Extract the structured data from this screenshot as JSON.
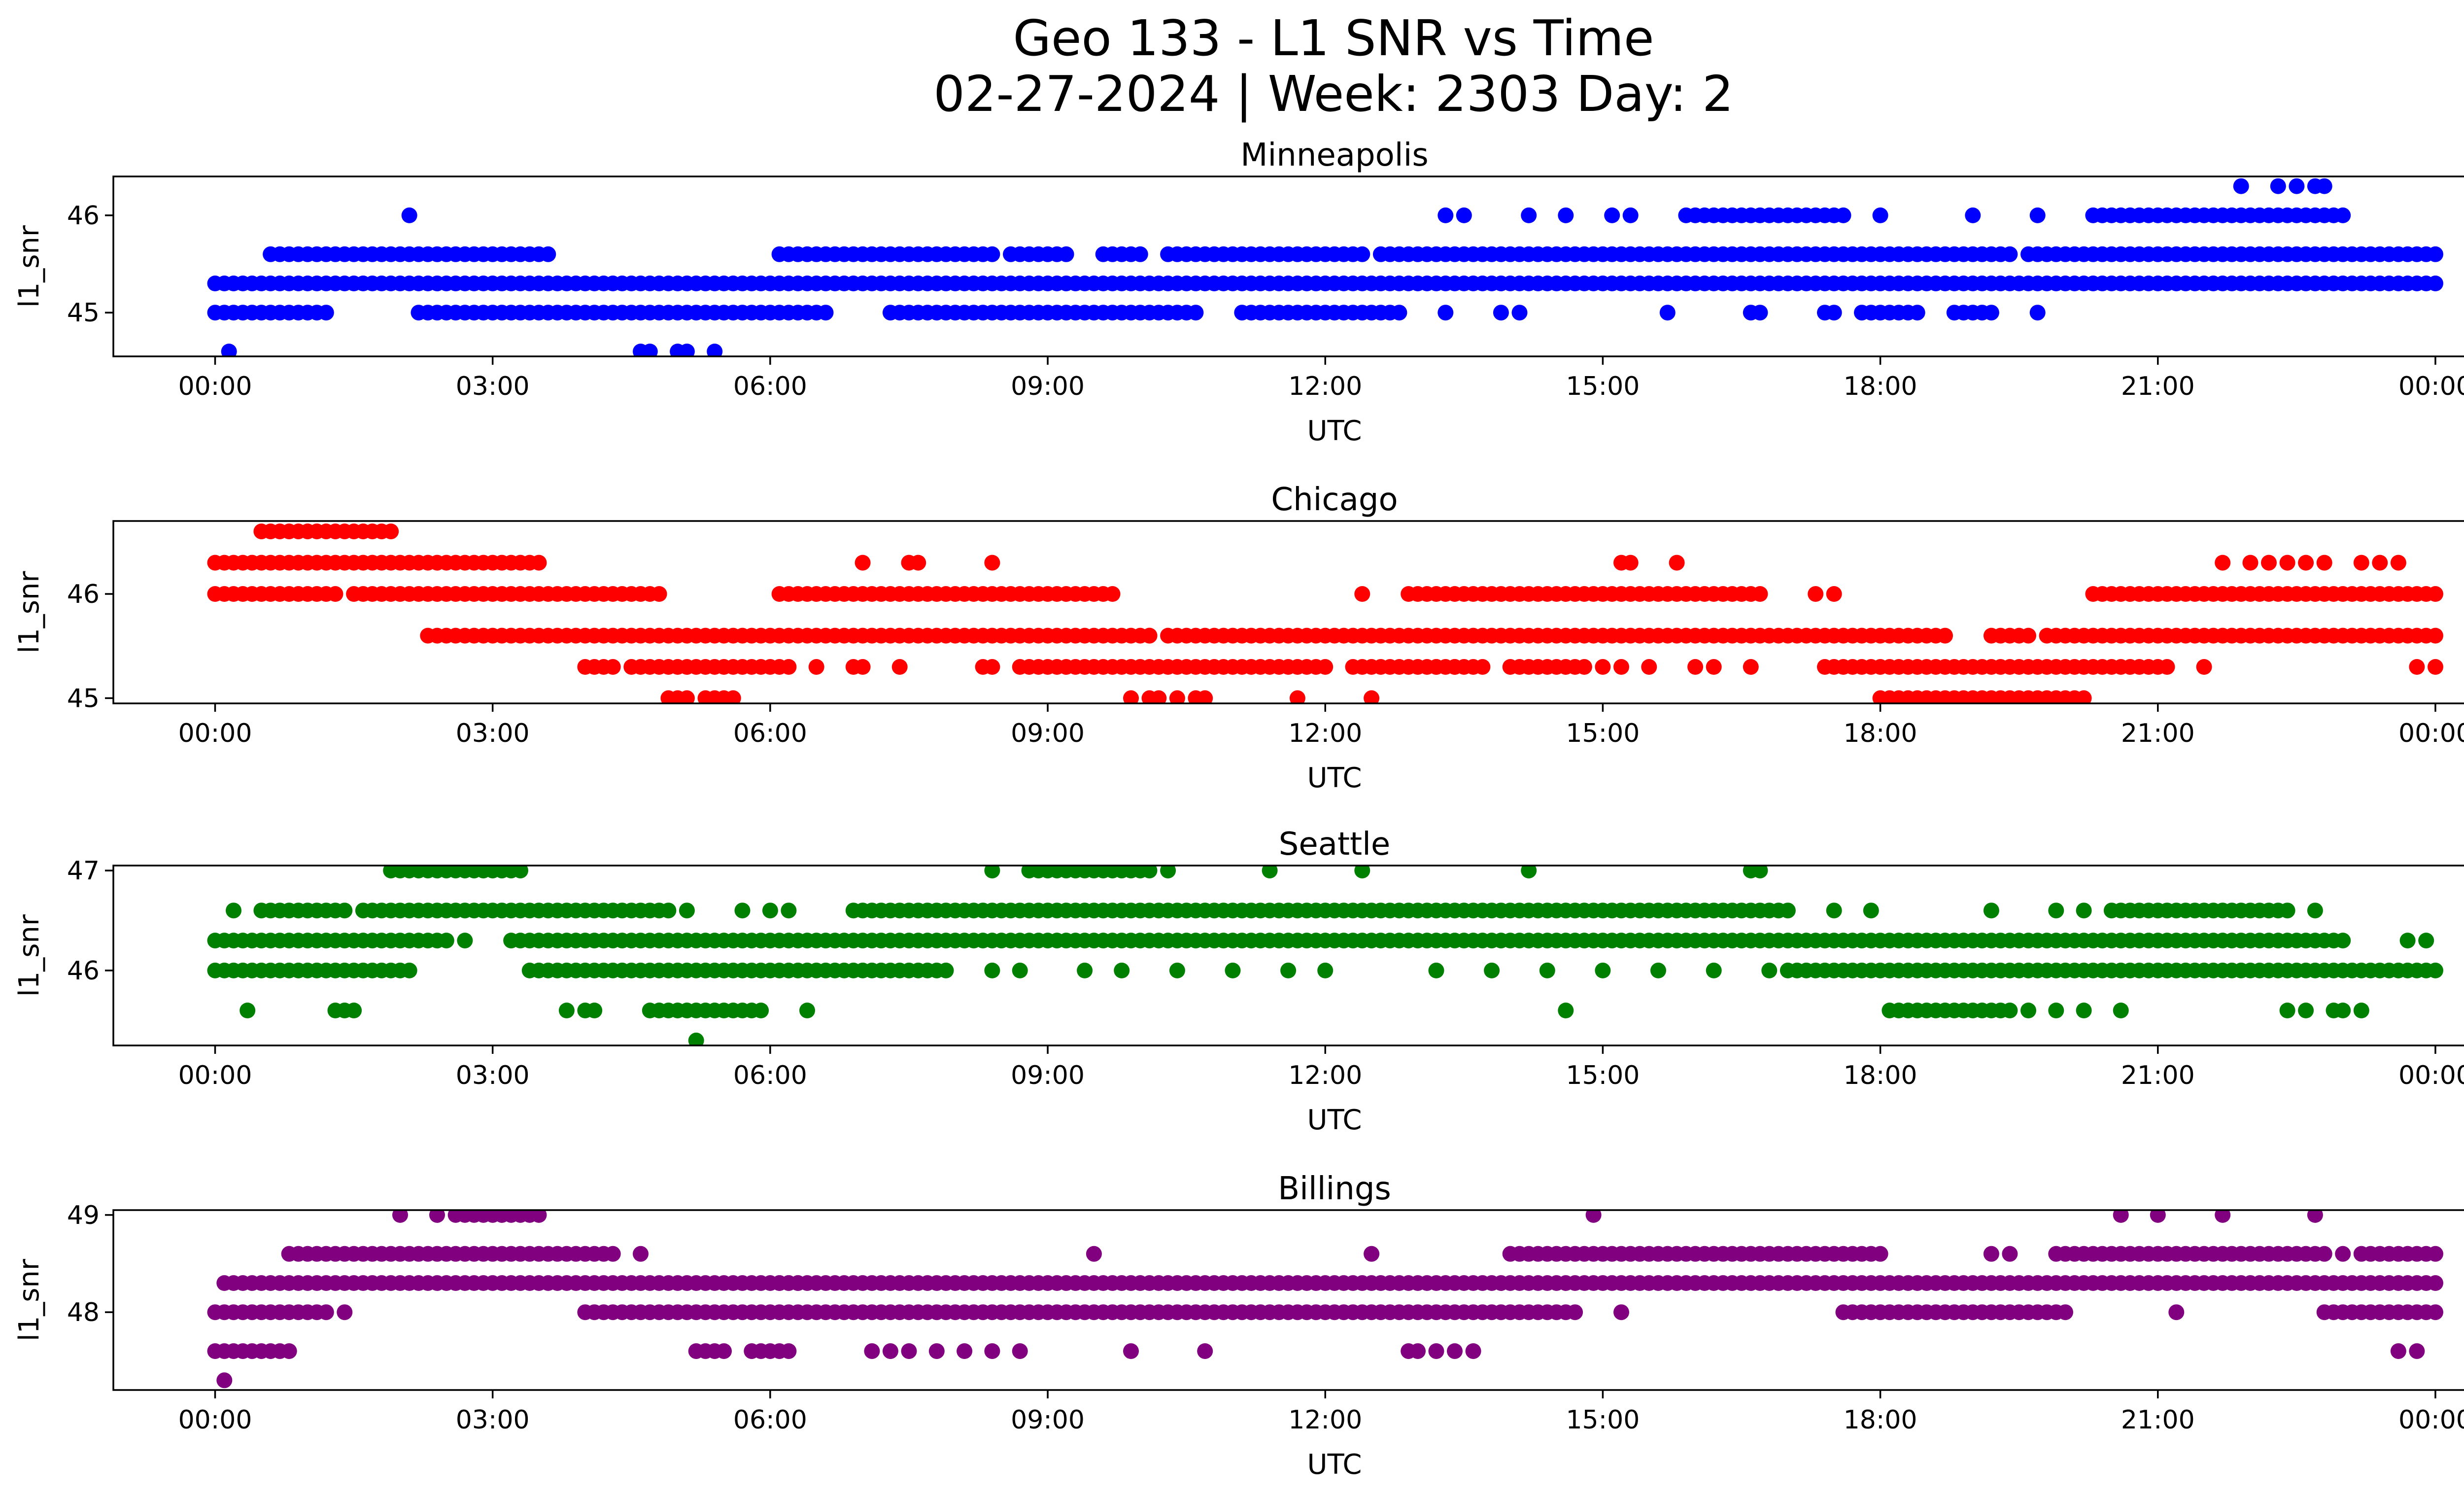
{
  "figure": {
    "title_line1": "Geo 133 - L1 SNR vs Time",
    "title_line2": "02-27-2024 | Week: 2303 Day: 2"
  },
  "chart_data": [
    {
      "type": "scatter",
      "title": "Minneapolis",
      "xlabel": "UTC",
      "ylabel": "l1_snr",
      "color": "#0000ff",
      "xlim": [
        -1.1,
        25.3
      ],
      "ylim": [
        44.55,
        46.4
      ],
      "xticks": [
        0,
        3,
        6,
        9,
        12,
        15,
        18,
        21,
        24
      ],
      "xtick_labels": [
        "00:00",
        "03:00",
        "06:00",
        "09:00",
        "12:00",
        "15:00",
        "18:00",
        "21:00",
        "00:00"
      ],
      "yticks": [
        45,
        46
      ],
      "ytick_labels": [
        "45",
        "46"
      ],
      "bands": [
        {
          "y": 45.3,
          "ranges": [
            [
              0.0,
              24.0
            ]
          ]
        },
        {
          "y": 45.6,
          "ranges": [
            [
              0.6,
              3.6
            ],
            [
              6.1,
              8.4
            ],
            [
              8.6,
              9.2
            ],
            [
              9.6,
              10.0
            ],
            [
              10.3,
              12.4
            ],
            [
              12.6,
              19.4
            ],
            [
              19.6,
              24.0
            ]
          ]
        },
        {
          "y": 45.0,
          "ranges": [
            [
              0.0,
              1.2
            ],
            [
              2.2,
              6.6
            ],
            [
              7.3,
              10.6
            ],
            [
              11.1,
              12.8
            ],
            [
              17.8,
              18.4
            ],
            [
              18.8,
              19.2
            ]
          ]
        },
        {
          "y": 46.0,
          "ranges": [
            [
              15.9,
              17.6
            ],
            [
              20.3,
              23.0
            ]
          ]
        }
      ],
      "points": [
        {
          "x": 0.15,
          "y": 44.6
        },
        {
          "x": 4.6,
          "y": 44.6
        },
        {
          "x": 4.7,
          "y": 44.6
        },
        {
          "x": 5.0,
          "y": 44.6
        },
        {
          "x": 5.1,
          "y": 44.6
        },
        {
          "x": 5.4,
          "y": 44.6
        },
        {
          "x": 2.1,
          "y": 46.0
        },
        {
          "x": 13.3,
          "y": 46.0
        },
        {
          "x": 13.5,
          "y": 46.0
        },
        {
          "x": 14.2,
          "y": 46.0
        },
        {
          "x": 14.6,
          "y": 46.0
        },
        {
          "x": 15.1,
          "y": 46.0
        },
        {
          "x": 15.3,
          "y": 46.0
        },
        {
          "x": 18.0,
          "y": 46.0
        },
        {
          "x": 19.0,
          "y": 46.0
        },
        {
          "x": 19.7,
          "y": 46.0
        },
        {
          "x": 13.3,
          "y": 45.0
        },
        {
          "x": 13.9,
          "y": 45.0
        },
        {
          "x": 14.1,
          "y": 45.0
        },
        {
          "x": 15.7,
          "y": 45.0
        },
        {
          "x": 16.6,
          "y": 45.0
        },
        {
          "x": 16.7,
          "y": 45.0
        },
        {
          "x": 17.4,
          "y": 45.0
        },
        {
          "x": 17.5,
          "y": 45.0
        },
        {
          "x": 19.7,
          "y": 45.0
        },
        {
          "x": 21.9,
          "y": 46.3
        },
        {
          "x": 22.3,
          "y": 46.3
        },
        {
          "x": 22.5,
          "y": 46.3
        },
        {
          "x": 22.7,
          "y": 46.3
        },
        {
          "x": 22.8,
          "y": 46.3
        }
      ]
    },
    {
      "type": "scatter",
      "title": "Chicago",
      "xlabel": "UTC",
      "ylabel": "l1_snr",
      "color": "#ff0000",
      "xlim": [
        -1.1,
        25.3
      ],
      "ylim": [
        44.95,
        46.7
      ],
      "xticks": [
        0,
        3,
        6,
        9,
        12,
        15,
        18,
        21,
        24
      ],
      "xtick_labels": [
        "00:00",
        "03:00",
        "06:00",
        "09:00",
        "12:00",
        "15:00",
        "18:00",
        "21:00",
        "00:00"
      ],
      "yticks": [
        45,
        46
      ],
      "ytick_labels": [
        "45",
        "46"
      ],
      "bands": [
        {
          "y": 46.6,
          "ranges": [
            [
              0.5,
              1.6
            ],
            [
              1.7,
              1.9
            ]
          ]
        },
        {
          "y": 46.3,
          "ranges": [
            [
              0.0,
              2.3
            ],
            [
              2.4,
              3.5
            ]
          ]
        },
        {
          "y": 46.0,
          "ranges": [
            [
              0.0,
              0.6
            ],
            [
              0.7,
              1.3
            ],
            [
              1.5,
              4.8
            ],
            [
              6.1,
              9.7
            ],
            [
              12.9,
              14.3
            ],
            [
              14.4,
              16.7
            ],
            [
              20.3,
              24.0
            ]
          ]
        },
        {
          "y": 45.6,
          "ranges": [
            [
              2.3,
              10.1
            ],
            [
              10.3,
              18.2
            ],
            [
              18.3,
              18.7
            ],
            [
              19.2,
              19.6
            ],
            [
              19.8,
              24.0
            ]
          ]
        },
        {
          "y": 45.3,
          "ranges": [
            [
              4.0,
              4.3
            ],
            [
              4.5,
              6.2
            ],
            [
              8.7,
              9.5
            ],
            [
              9.6,
              12.0
            ],
            [
              12.3,
              13.7
            ],
            [
              14.0,
              14.8
            ],
            [
              17.4,
              21.1
            ]
          ]
        },
        {
          "y": 45.0,
          "ranges": [
            [
              18.0,
              20.2
            ]
          ]
        }
      ],
      "points": [
        {
          "x": 7.0,
          "y": 46.3
        },
        {
          "x": 7.5,
          "y": 46.3
        },
        {
          "x": 7.6,
          "y": 46.3
        },
        {
          "x": 8.4,
          "y": 46.3
        },
        {
          "x": 15.2,
          "y": 46.3
        },
        {
          "x": 15.3,
          "y": 46.3
        },
        {
          "x": 15.8,
          "y": 46.3
        },
        {
          "x": 21.7,
          "y": 46.3
        },
        {
          "x": 22.0,
          "y": 46.3
        },
        {
          "x": 22.2,
          "y": 46.3
        },
        {
          "x": 22.4,
          "y": 46.3
        },
        {
          "x": 22.6,
          "y": 46.3
        },
        {
          "x": 22.8,
          "y": 46.3
        },
        {
          "x": 23.2,
          "y": 46.3
        },
        {
          "x": 23.4,
          "y": 46.3
        },
        {
          "x": 23.6,
          "y": 46.3
        },
        {
          "x": 12.4,
          "y": 46.0
        },
        {
          "x": 17.3,
          "y": 46.0
        },
        {
          "x": 17.5,
          "y": 46.0
        },
        {
          "x": 10.1,
          "y": 45.6
        },
        {
          "x": 6.5,
          "y": 45.3
        },
        {
          "x": 6.9,
          "y": 45.3
        },
        {
          "x": 7.0,
          "y": 45.3
        },
        {
          "x": 7.4,
          "y": 45.3
        },
        {
          "x": 8.3,
          "y": 45.3
        },
        {
          "x": 8.4,
          "y": 45.3
        },
        {
          "x": 13.2,
          "y": 45.3
        },
        {
          "x": 13.4,
          "y": 45.3
        },
        {
          "x": 15.0,
          "y": 45.3
        },
        {
          "x": 15.2,
          "y": 45.3
        },
        {
          "x": 15.5,
          "y": 45.3
        },
        {
          "x": 16.0,
          "y": 45.3
        },
        {
          "x": 16.2,
          "y": 45.3
        },
        {
          "x": 16.6,
          "y": 45.3
        },
        {
          "x": 21.5,
          "y": 45.3
        },
        {
          "x": 23.8,
          "y": 45.3
        },
        {
          "x": 24.0,
          "y": 45.3
        },
        {
          "x": 4.9,
          "y": 45.0
        },
        {
          "x": 5.0,
          "y": 45.0
        },
        {
          "x": 5.1,
          "y": 45.0
        },
        {
          "x": 5.3,
          "y": 45.0
        },
        {
          "x": 5.4,
          "y": 45.0
        },
        {
          "x": 5.5,
          "y": 45.0
        },
        {
          "x": 5.6,
          "y": 45.0
        },
        {
          "x": 9.9,
          "y": 45.0
        },
        {
          "x": 10.1,
          "y": 45.0
        },
        {
          "x": 10.2,
          "y": 45.0
        },
        {
          "x": 10.4,
          "y": 45.0
        },
        {
          "x": 10.6,
          "y": 45.0
        },
        {
          "x": 10.7,
          "y": 45.0
        },
        {
          "x": 11.7,
          "y": 45.0
        },
        {
          "x": 12.5,
          "y": 45.0
        }
      ]
    },
    {
      "type": "scatter",
      "title": "Seattle",
      "xlabel": "UTC",
      "ylabel": "l1_snr",
      "color": "#008000",
      "xlim": [
        -1.1,
        25.3
      ],
      "ylim": [
        45.25,
        47.05
      ],
      "xticks": [
        0,
        3,
        6,
        9,
        12,
        15,
        18,
        21,
        24
      ],
      "xtick_labels": [
        "00:00",
        "03:00",
        "06:00",
        "09:00",
        "12:00",
        "15:00",
        "18:00",
        "21:00",
        "00:00"
      ],
      "yticks": [
        46,
        47
      ],
      "ytick_labels": [
        "46",
        "47"
      ],
      "bands": [
        {
          "y": 47.0,
          "ranges": [
            [
              1.9,
              3.3
            ],
            [
              8.8,
              10.0
            ]
          ]
        },
        {
          "y": 46.6,
          "ranges": [
            [
              0.5,
              1.4
            ],
            [
              1.6,
              4.9
            ],
            [
              6.9,
              17.0
            ],
            [
              20.5,
              22.4
            ]
          ]
        },
        {
          "y": 46.3,
          "ranges": [
            [
              0.0,
              2.5
            ],
            [
              3.2,
              23.0
            ]
          ]
        },
        {
          "y": 46.0,
          "ranges": [
            [
              0.0,
              2.1
            ],
            [
              3.4,
              7.9
            ],
            [
              17.0,
              24.0
            ]
          ]
        },
        {
          "y": 45.6,
          "ranges": [
            [
              4.7,
              5.9
            ],
            [
              18.1,
              19.4
            ]
          ]
        }
      ],
      "points": [
        {
          "x": 8.4,
          "y": 47.0
        },
        {
          "x": 10.1,
          "y": 47.0
        },
        {
          "x": 10.3,
          "y": 47.0
        },
        {
          "x": 11.4,
          "y": 47.0
        },
        {
          "x": 12.4,
          "y": 47.0
        },
        {
          "x": 14.2,
          "y": 47.0
        },
        {
          "x": 16.6,
          "y": 47.0
        },
        {
          "x": 16.7,
          "y": 47.0
        },
        {
          "x": 0.2,
          "y": 46.6
        },
        {
          "x": 5.1,
          "y": 46.6
        },
        {
          "x": 5.7,
          "y": 46.6
        },
        {
          "x": 6.0,
          "y": 46.6
        },
        {
          "x": 6.2,
          "y": 46.6
        },
        {
          "x": 17.5,
          "y": 46.6
        },
        {
          "x": 17.9,
          "y": 46.6
        },
        {
          "x": 19.2,
          "y": 46.6
        },
        {
          "x": 19.9,
          "y": 46.6
        },
        {
          "x": 20.2,
          "y": 46.6
        },
        {
          "x": 22.7,
          "y": 46.6
        },
        {
          "x": 2.7,
          "y": 46.3
        },
        {
          "x": 23.7,
          "y": 46.3
        },
        {
          "x": 23.9,
          "y": 46.3
        },
        {
          "x": 8.4,
          "y": 46.0
        },
        {
          "x": 8.7,
          "y": 46.0
        },
        {
          "x": 9.4,
          "y": 46.0
        },
        {
          "x": 9.8,
          "y": 46.0
        },
        {
          "x": 10.4,
          "y": 46.0
        },
        {
          "x": 11.0,
          "y": 46.0
        },
        {
          "x": 11.6,
          "y": 46.0
        },
        {
          "x": 12.0,
          "y": 46.0
        },
        {
          "x": 13.2,
          "y": 46.0
        },
        {
          "x": 13.8,
          "y": 46.0
        },
        {
          "x": 14.4,
          "y": 46.0
        },
        {
          "x": 15.0,
          "y": 46.0
        },
        {
          "x": 15.6,
          "y": 46.0
        },
        {
          "x": 16.2,
          "y": 46.0
        },
        {
          "x": 16.8,
          "y": 46.0
        },
        {
          "x": 0.35,
          "y": 45.6
        },
        {
          "x": 1.3,
          "y": 45.6
        },
        {
          "x": 1.4,
          "y": 45.6
        },
        {
          "x": 1.5,
          "y": 45.6
        },
        {
          "x": 3.8,
          "y": 45.6
        },
        {
          "x": 4.0,
          "y": 45.6
        },
        {
          "x": 4.1,
          "y": 45.6
        },
        {
          "x": 6.4,
          "y": 45.6
        },
        {
          "x": 14.6,
          "y": 45.6
        },
        {
          "x": 19.6,
          "y": 45.6
        },
        {
          "x": 19.9,
          "y": 45.6
        },
        {
          "x": 20.2,
          "y": 45.6
        },
        {
          "x": 20.6,
          "y": 45.6
        },
        {
          "x": 22.4,
          "y": 45.6
        },
        {
          "x": 22.6,
          "y": 45.6
        },
        {
          "x": 22.9,
          "y": 45.6
        },
        {
          "x": 23.0,
          "y": 45.6
        },
        {
          "x": 23.2,
          "y": 45.6
        },
        {
          "x": 5.2,
          "y": 45.3
        }
      ]
    },
    {
      "type": "scatter",
      "title": "Billings",
      "xlabel": "UTC",
      "ylabel": "l1_snr",
      "color": "#800080",
      "xlim": [
        -1.1,
        25.3
      ],
      "ylim": [
        47.2,
        49.05
      ],
      "xticks": [
        0,
        3,
        6,
        9,
        12,
        15,
        18,
        21,
        24
      ],
      "xtick_labels": [
        "00:00",
        "03:00",
        "06:00",
        "09:00",
        "12:00",
        "15:00",
        "18:00",
        "21:00",
        "00:00"
      ],
      "yticks": [
        48,
        49
      ],
      "ytick_labels": [
        "48",
        "49"
      ],
      "bands": [
        {
          "y": 49.0,
          "ranges": [
            [
              2.6,
              3.0
            ],
            [
              3.1,
              3.5
            ]
          ]
        },
        {
          "y": 48.6,
          "ranges": [
            [
              0.8,
              4.3
            ],
            [
              14.0,
              17.0
            ],
            [
              17.1,
              18.0
            ],
            [
              20.0,
              22.8
            ],
            [
              23.3,
              24.0
            ]
          ]
        },
        {
          "y": 48.3,
          "ranges": [
            [
              0.1,
              4.1
            ],
            [
              4.2,
              6.3
            ],
            [
              6.1,
              24.0
            ]
          ]
        },
        {
          "y": 48.0,
          "ranges": [
            [
              0.0,
              1.2
            ],
            [
              4.0,
              14.7
            ],
            [
              17.7,
              20.0
            ],
            [
              22.8,
              24.0
            ]
          ]
        },
        {
          "y": 47.6,
          "ranges": [
            [
              0.0,
              0.8
            ],
            [
              5.2,
              5.5
            ],
            [
              5.8,
              6.2
            ]
          ]
        }
      ],
      "points": [
        {
          "x": 2.0,
          "y": 49.0
        },
        {
          "x": 2.4,
          "y": 49.0
        },
        {
          "x": 14.9,
          "y": 49.0
        },
        {
          "x": 20.6,
          "y": 49.0
        },
        {
          "x": 21.0,
          "y": 49.0
        },
        {
          "x": 21.7,
          "y": 49.0
        },
        {
          "x": 22.7,
          "y": 49.0
        },
        {
          "x": 4.6,
          "y": 48.6
        },
        {
          "x": 9.5,
          "y": 48.6
        },
        {
          "x": 12.5,
          "y": 48.6
        },
        {
          "x": 19.2,
          "y": 48.6
        },
        {
          "x": 19.4,
          "y": 48.6
        },
        {
          "x": 19.9,
          "y": 48.6
        },
        {
          "x": 23.0,
          "y": 48.6
        },
        {
          "x": 23.2,
          "y": 48.6
        },
        {
          "x": 1.4,
          "y": 48.0
        },
        {
          "x": 15.2,
          "y": 48.0
        },
        {
          "x": 17.6,
          "y": 48.0
        },
        {
          "x": 21.2,
          "y": 48.0
        },
        {
          "x": 7.1,
          "y": 47.6
        },
        {
          "x": 7.3,
          "y": 47.6
        },
        {
          "x": 7.5,
          "y": 47.6
        },
        {
          "x": 7.8,
          "y": 47.6
        },
        {
          "x": 8.1,
          "y": 47.6
        },
        {
          "x": 8.4,
          "y": 47.6
        },
        {
          "x": 8.7,
          "y": 47.6
        },
        {
          "x": 9.9,
          "y": 47.6
        },
        {
          "x": 10.7,
          "y": 47.6
        },
        {
          "x": 12.9,
          "y": 47.6
        },
        {
          "x": 13.0,
          "y": 47.6
        },
        {
          "x": 13.2,
          "y": 47.6
        },
        {
          "x": 13.4,
          "y": 47.6
        },
        {
          "x": 13.6,
          "y": 47.6
        },
        {
          "x": 23.6,
          "y": 47.6
        },
        {
          "x": 23.8,
          "y": 47.6
        },
        {
          "x": 0.1,
          "y": 47.3
        }
      ]
    }
  ]
}
